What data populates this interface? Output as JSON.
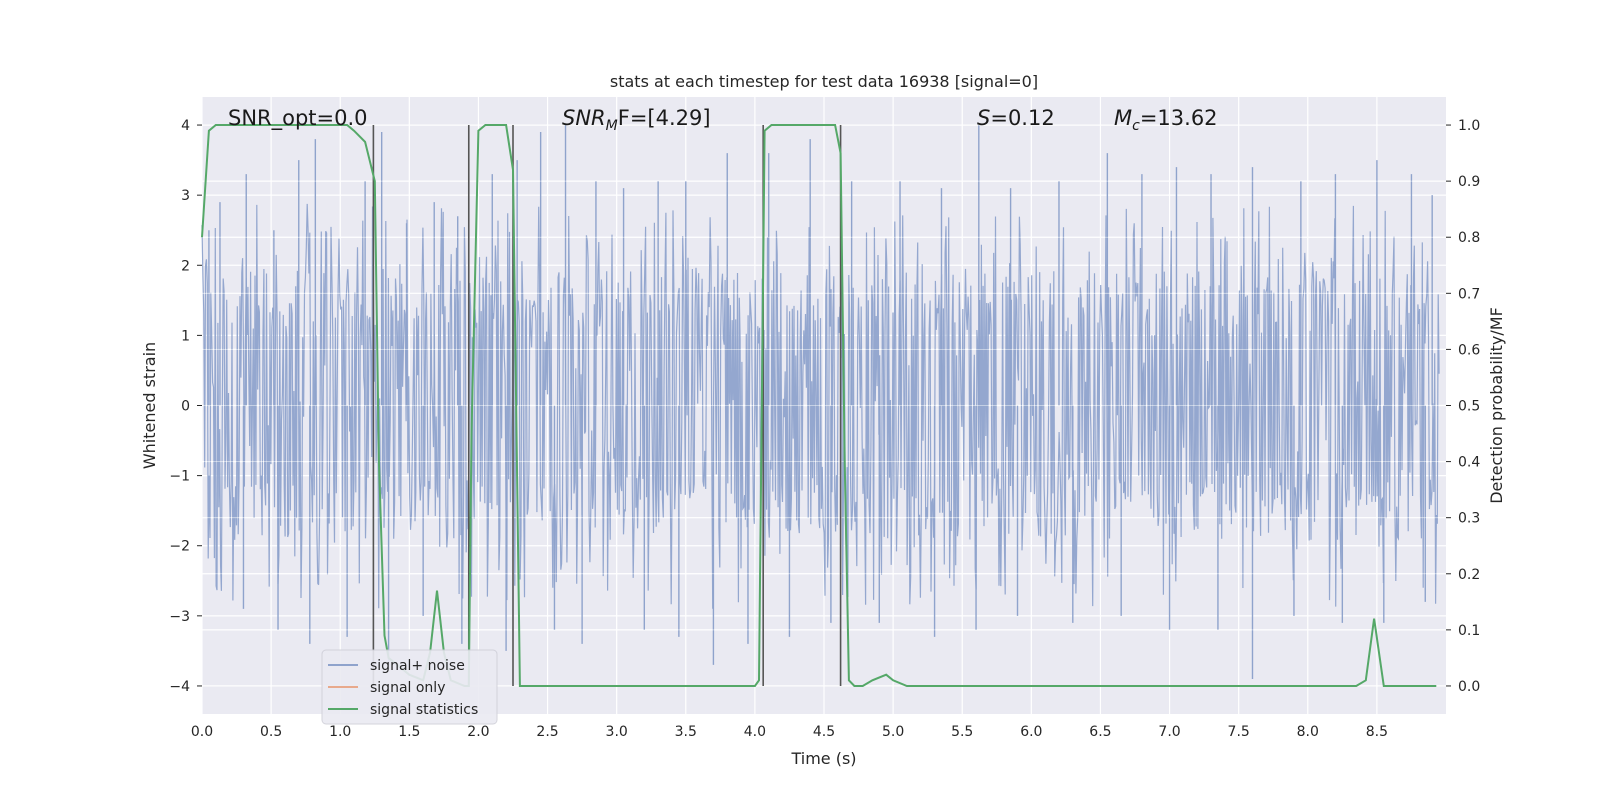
{
  "chart_data": {
    "type": "line",
    "title": "stats at each timestep for test data 16938 [signal=0]",
    "xlabel": "Time (s)",
    "ylabel": "Whitened strain",
    "ylabel_right": "Detection probability/MF",
    "xlim": [
      0.0,
      9.0
    ],
    "ylim": [
      -4.4,
      4.4
    ],
    "ylim_right": [
      -0.05,
      1.05
    ],
    "xticks": [
      "0.0",
      "0.5",
      "1.0",
      "1.5",
      "2.0",
      "2.5",
      "3.0",
      "3.5",
      "4.0",
      "4.5",
      "5.0",
      "5.5",
      "6.0",
      "6.5",
      "7.0",
      "7.5",
      "8.0",
      "8.5"
    ],
    "yticks": [
      "4",
      "3",
      "2",
      "1",
      "0",
      "−1",
      "−2",
      "−3",
      "−4"
    ],
    "yticks_right": [
      "1.0",
      "0.9",
      "0.8",
      "0.7",
      "0.6",
      "0.5",
      "0.4",
      "0.3",
      "0.2",
      "0.1",
      "0.0"
    ],
    "grid": true,
    "legend_position": "lower-left",
    "annotations": [
      {
        "text": "SNR_opt=0.0"
      },
      {
        "text": "SNR",
        "sub": "M",
        "rest": "F=[4.29]"
      },
      {
        "text": "S",
        "rest": "=0.12"
      },
      {
        "text": "M",
        "sub": "c",
        "rest": "=13.62"
      }
    ],
    "series": [
      {
        "name": "signal+ noise",
        "color": "#8fa3cc",
        "axis": "left",
        "kind": "noise",
        "description_values": {
          "typical_band": [
            -1.6,
            1.6
          ],
          "max": 4.0,
          "min": -3.9
        },
        "peaks": [
          [
            0.05,
            2.5
          ],
          [
            0.13,
            2.9
          ],
          [
            0.32,
            3.3
          ],
          [
            0.52,
            2.5
          ],
          [
            0.7,
            3.5
          ],
          [
            0.82,
            3.8
          ],
          [
            1.18,
            3.2
          ],
          [
            1.3,
            3.9
          ],
          [
            1.48,
            2.6
          ],
          [
            1.68,
            2.9
          ],
          [
            1.85,
            2.7
          ],
          [
            2.1,
            3.3
          ],
          [
            2.28,
            3.5
          ],
          [
            2.45,
            3.9
          ],
          [
            2.63,
            4.0
          ],
          [
            2.85,
            3.2
          ],
          [
            3.05,
            3.1
          ],
          [
            3.3,
            3.2
          ],
          [
            3.5,
            3.2
          ],
          [
            3.8,
            3.6
          ],
          [
            4.1,
            3.6
          ],
          [
            4.4,
            3.8
          ],
          [
            4.7,
            3.2
          ],
          [
            5.05,
            3.2
          ],
          [
            5.35,
            3.1
          ],
          [
            5.62,
            4.0
          ],
          [
            5.85,
            3.1
          ],
          [
            6.2,
            3.2
          ],
          [
            6.55,
            3.6
          ],
          [
            6.8,
            3.3
          ],
          [
            7.05,
            3.4
          ],
          [
            7.3,
            3.3
          ],
          [
            7.6,
            3.4
          ],
          [
            7.95,
            3.2
          ],
          [
            8.2,
            3.3
          ],
          [
            8.5,
            3.5
          ],
          [
            8.75,
            3.3
          ],
          [
            8.9,
            3.0
          ]
        ],
        "troughs": [
          [
            0.3,
            -2.9
          ],
          [
            0.55,
            -3.2
          ],
          [
            0.78,
            -3.4
          ],
          [
            1.05,
            -3.3
          ],
          [
            1.35,
            -3.7
          ],
          [
            1.6,
            -3.0
          ],
          [
            1.88,
            -3.4
          ],
          [
            2.2,
            -3.5
          ],
          [
            2.55,
            -3.2
          ],
          [
            2.75,
            -3.4
          ],
          [
            3.2,
            -3.2
          ],
          [
            3.45,
            -3.3
          ],
          [
            3.7,
            -3.7
          ],
          [
            3.95,
            -3.4
          ],
          [
            4.25,
            -3.3
          ],
          [
            4.55,
            -3.1
          ],
          [
            4.9,
            -3.1
          ],
          [
            5.3,
            -3.3
          ],
          [
            5.6,
            -3.2
          ],
          [
            5.9,
            -3.0
          ],
          [
            6.3,
            -3.1
          ],
          [
            6.65,
            -3.0
          ],
          [
            7.0,
            -3.2
          ],
          [
            7.35,
            -3.2
          ],
          [
            7.6,
            -3.9
          ],
          [
            7.9,
            -3.0
          ],
          [
            8.25,
            -3.1
          ],
          [
            8.55,
            -3.1
          ],
          [
            8.85,
            -2.8
          ]
        ]
      },
      {
        "name": "signal only",
        "color": "#e8a98c",
        "axis": "left",
        "kind": "line",
        "x": [
          0.0,
          9.0
        ],
        "y": [
          0.0,
          0.0
        ]
      },
      {
        "name": "signal statistics",
        "color": "#55a868",
        "axis": "right",
        "kind": "line",
        "x": [
          0.0,
          0.05,
          0.1,
          0.15,
          0.2,
          0.3,
          0.4,
          0.5,
          0.6,
          0.7,
          0.8,
          0.9,
          1.0,
          1.05,
          1.1,
          1.18,
          1.25,
          1.28,
          1.32,
          1.35,
          1.4,
          1.5,
          1.6,
          1.65,
          1.7,
          1.75,
          1.8,
          1.9,
          1.93,
          1.95,
          2.0,
          2.05,
          2.1,
          2.15,
          2.2,
          2.25,
          2.3,
          2.4,
          2.5,
          2.6,
          2.7,
          2.8,
          3.0,
          3.2,
          3.4,
          3.6,
          3.8,
          4.0,
          4.03,
          4.07,
          4.12,
          4.2,
          4.3,
          4.4,
          4.5,
          4.58,
          4.62,
          4.65,
          4.68,
          4.72,
          4.78,
          4.85,
          4.95,
          5.0,
          5.1,
          5.3,
          5.5,
          6.0,
          6.5,
          7.0,
          7.5,
          8.0,
          8.35,
          8.42,
          8.48,
          8.55,
          8.6,
          8.7,
          8.8,
          8.93
        ],
        "y": [
          0.8,
          0.99,
          1.0,
          1.0,
          1.0,
          1.0,
          1.0,
          1.0,
          1.0,
          1.0,
          1.0,
          1.0,
          1.0,
          1.0,
          0.99,
          0.97,
          0.9,
          0.4,
          0.09,
          0.05,
          0.04,
          0.02,
          0.01,
          0.06,
          0.17,
          0.06,
          0.01,
          0.0,
          0.0,
          0.45,
          0.99,
          1.0,
          1.0,
          1.0,
          1.0,
          0.92,
          0.0,
          0.0,
          0.0,
          0.0,
          0.0,
          0.0,
          0.0,
          0.0,
          0.0,
          0.0,
          0.0,
          0.0,
          0.01,
          0.99,
          1.0,
          1.0,
          1.0,
          1.0,
          1.0,
          1.0,
          0.95,
          0.4,
          0.01,
          0.0,
          0.0,
          0.01,
          0.02,
          0.01,
          0.0,
          0.0,
          0.0,
          0.0,
          0.0,
          0.0,
          0.0,
          0.0,
          0.0,
          0.01,
          0.12,
          0.0,
          0.0,
          0.0,
          0.0,
          0.0
        ]
      }
    ],
    "vertical_lines_x": [
      1.24,
      1.93,
      2.25,
      4.06,
      4.62
    ]
  }
}
